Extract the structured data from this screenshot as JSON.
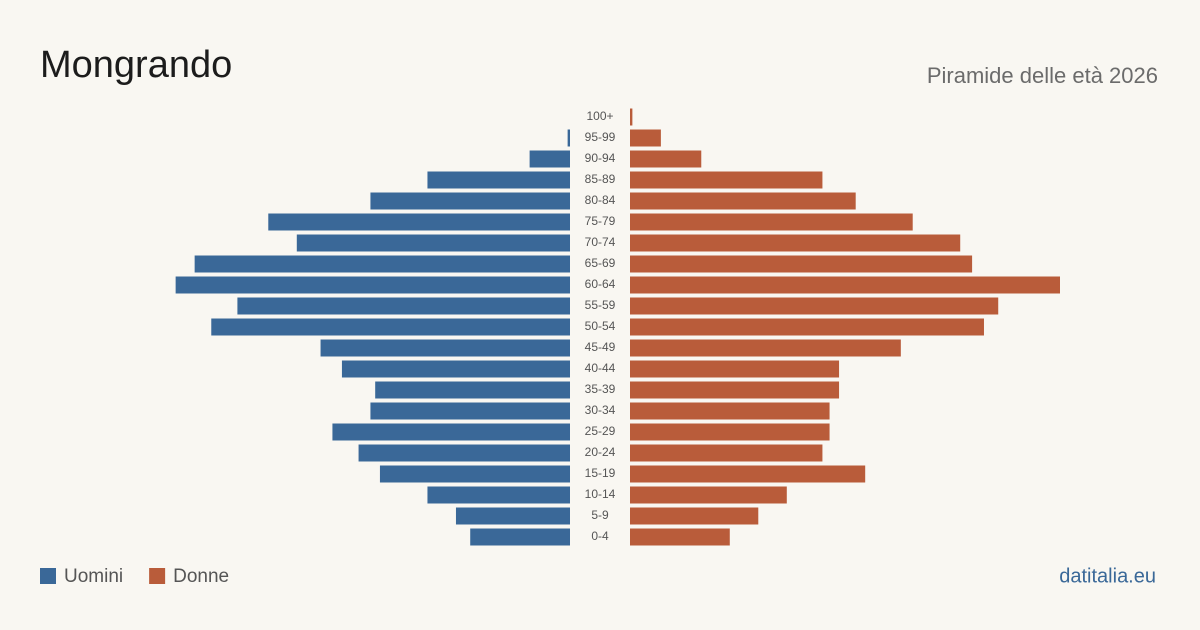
{
  "chart_data": {
    "type": "pyramid",
    "title": "Mongrando",
    "subtitle": "Piramide delle età 2026",
    "source": "datitalia.eu",
    "categories": [
      "100+",
      "95-99",
      "90-94",
      "85-89",
      "80-84",
      "75-79",
      "70-74",
      "65-69",
      "60-64",
      "55-59",
      "50-54",
      "45-49",
      "40-44",
      "35-39",
      "30-34",
      "25-29",
      "20-24",
      "15-19",
      "10-14",
      "5-9",
      "0-4"
    ],
    "series": [
      {
        "name": "Uomini",
        "color": "#3a6898",
        "values": [
          0,
          1,
          17,
          60,
          84,
          127,
          115,
          158,
          166,
          140,
          151,
          105,
          96,
          82,
          84,
          100,
          89,
          80,
          60,
          48,
          42
        ]
      },
      {
        "name": "Donne",
        "color": "#b95c3a",
        "values": [
          1,
          13,
          30,
          81,
          95,
          119,
          139,
          144,
          181,
          155,
          149,
          114,
          88,
          88,
          84,
          84,
          81,
          99,
          66,
          54,
          42
        ]
      }
    ]
  }
}
